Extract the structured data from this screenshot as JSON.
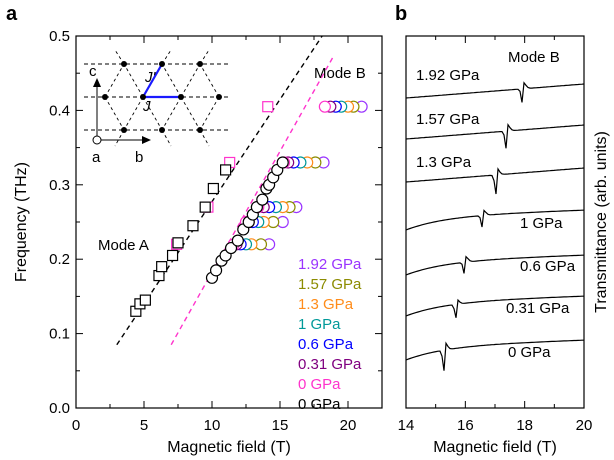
{
  "colors": {
    "pressures": [
      "#000000",
      "#ff33cc",
      "#800080",
      "#0000ff",
      "#009999",
      "#ff8c1a",
      "#8c8c00",
      "#9933ff"
    ],
    "fit_mode_a": "#000000",
    "fit_mode_b": "#ff33cc",
    "lattice_bond": "#1a1aff"
  },
  "panel_a": {
    "letter": "a",
    "xlabel": "Magnetic field (T)",
    "ylabel": "Frequency (THz)",
    "mode_a_label": "Mode A",
    "mode_b_label": "Mode B",
    "legend": [
      "1.92 GPa",
      "1.57 GPa",
      "1.3 GPa",
      "1 GPa",
      "0.6 GPa",
      "0.31 GPa",
      "0 GPa",
      "0 GPa"
    ],
    "legend_colors": [
      "#9933ff",
      "#8c8c00",
      "#ff8c1a",
      "#009999",
      "#0000ff",
      "#800080",
      "#ff33cc",
      "#000000"
    ],
    "inset": {
      "axis_c": "c",
      "axis_a": "a",
      "axis_b": "b",
      "bond_j": "J",
      "bond_jprime": "J'"
    }
  },
  "panel_b": {
    "letter": "b",
    "xlabel": "Magnetic field (T)",
    "ylabel": "Transmittance (arb. units)",
    "mode_label": "Mode B",
    "traces": [
      {
        "label": "1.92 GPa",
        "resonance": 17.95,
        "depth": 18
      },
      {
        "label": "1.57 GPa",
        "resonance": 17.4,
        "depth": 20
      },
      {
        "label": "1.3 GPa",
        "resonance": 17.05,
        "depth": 20
      },
      {
        "label": "1 GPa",
        "resonance": 16.6,
        "depth": 15
      },
      {
        "label": "0.6 GPa",
        "resonance": 16.0,
        "depth": 16
      },
      {
        "label": "0.31 GPa",
        "resonance": 15.7,
        "depth": 14
      },
      {
        "label": "0 GPa",
        "resonance": 15.3,
        "depth": 22
      }
    ]
  },
  "chart_data": [
    {
      "type": "scatter",
      "xlabel": "Magnetic field (T)",
      "ylabel": "Frequency (THz)",
      "xlim": [
        0,
        22.5
      ],
      "ylim": [
        0,
        0.5
      ],
      "xticks": [
        0,
        5,
        10,
        15,
        20
      ],
      "yticks": [
        0.0,
        0.1,
        0.2,
        0.3,
        0.4,
        0.5
      ],
      "grid": false,
      "fit_lines": [
        {
          "name": "Mode A",
          "points": [
            [
              3.0,
              0.085
            ],
            [
              18.1,
              0.5
            ]
          ]
        },
        {
          "name": "Mode B",
          "points": [
            [
              7.0,
              0.085
            ],
            [
              19.0,
              0.475
            ]
          ]
        }
      ],
      "series": [
        {
          "name": "0 GPa",
          "marker": "square",
          "color": "#000000",
          "points": [
            [
              4.4,
              0.13
            ],
            [
              4.7,
              0.14
            ],
            [
              5.1,
              0.145
            ],
            [
              6.1,
              0.178
            ],
            [
              6.3,
              0.19
            ],
            [
              7.1,
              0.205
            ],
            [
              7.5,
              0.222
            ],
            [
              8.6,
              0.245
            ],
            [
              9.5,
              0.27
            ],
            [
              10.1,
              0.295
            ],
            [
              11.0,
              0.32
            ]
          ]
        },
        {
          "name": "0 GPa",
          "marker": "square",
          "color": "#ff33cc",
          "points": [
            [
              7.4,
              0.22
            ],
            [
              9.7,
              0.27
            ],
            [
              11.3,
              0.33
            ],
            [
              14.1,
              0.405
            ]
          ]
        },
        {
          "name": "0 GPa",
          "marker": "circle",
          "color": "#000000",
          "points": [
            [
              10.0,
              0.175
            ],
            [
              10.3,
              0.185
            ],
            [
              10.7,
              0.198
            ],
            [
              11.0,
              0.205
            ],
            [
              11.4,
              0.215
            ],
            [
              11.9,
              0.225
            ],
            [
              12.3,
              0.24
            ],
            [
              12.7,
              0.25
            ],
            [
              13.0,
              0.26
            ],
            [
              13.3,
              0.27
            ],
            [
              13.7,
              0.28
            ],
            [
              14.0,
              0.295
            ],
            [
              14.2,
              0.3
            ],
            [
              14.5,
              0.31
            ],
            [
              14.8,
              0.32
            ],
            [
              15.2,
              0.33
            ]
          ]
        },
        {
          "name": "0 GPa",
          "marker": "circle",
          "color": "#ff33cc",
          "points": [
            [
              11.6,
              0.22
            ],
            [
              12.5,
              0.25
            ],
            [
              13.4,
              0.27
            ],
            [
              15.3,
              0.33
            ],
            [
              18.3,
              0.405
            ]
          ]
        },
        {
          "name": "0.31 GPa",
          "marker": "circle",
          "color": "#800080",
          "points": [
            [
              11.8,
              0.22
            ],
            [
              12.7,
              0.25
            ],
            [
              13.8,
              0.27
            ],
            [
              15.6,
              0.33
            ],
            [
              18.7,
              0.405
            ]
          ]
        },
        {
          "name": "0.6 GPa",
          "marker": "circle",
          "color": "#0000ff",
          "points": [
            [
              12.1,
              0.22
            ],
            [
              13.0,
              0.25
            ],
            [
              14.2,
              0.27
            ],
            [
              16.0,
              0.33
            ],
            [
              19.1,
              0.405
            ]
          ]
        },
        {
          "name": "1 GPa",
          "marker": "circle",
          "color": "#009999",
          "points": [
            [
              12.5,
              0.22
            ],
            [
              13.4,
              0.25
            ],
            [
              14.7,
              0.27
            ],
            [
              16.5,
              0.33
            ],
            [
              19.5,
              0.405
            ]
          ]
        },
        {
          "name": "1.3 GPa",
          "marker": "circle",
          "color": "#ff8c1a",
          "points": [
            [
              12.9,
              0.22
            ],
            [
              13.8,
              0.25
            ],
            [
              15.2,
              0.27
            ],
            [
              17.0,
              0.33
            ],
            [
              20.0,
              0.405
            ]
          ]
        },
        {
          "name": "1.57 GPa",
          "marker": "circle",
          "color": "#8c8c00",
          "points": [
            [
              13.6,
              0.22
            ],
            [
              14.5,
              0.25
            ],
            [
              15.7,
              0.27
            ],
            [
              17.6,
              0.33
            ],
            [
              20.4,
              0.405
            ]
          ]
        },
        {
          "name": "1.92 GPa",
          "marker": "circle",
          "color": "#9933ff",
          "points": [
            [
              14.2,
              0.22
            ],
            [
              15.2,
              0.25
            ],
            [
              16.2,
              0.27
            ],
            [
              18.2,
              0.33
            ],
            [
              21.0,
              0.405
            ]
          ]
        }
      ]
    },
    {
      "type": "line",
      "xlabel": "Magnetic field (T)",
      "ylabel": "Transmittance (arb. units)",
      "xlim": [
        14,
        20
      ],
      "xticks": [
        14,
        16,
        18,
        20
      ],
      "series": [
        {
          "name": "1.92 GPa",
          "resonance_field": 17.95
        },
        {
          "name": "1.57 GPa",
          "resonance_field": 17.4
        },
        {
          "name": "1.3 GPa",
          "resonance_field": 17.05
        },
        {
          "name": "1 GPa",
          "resonance_field": 16.6
        },
        {
          "name": "0.6 GPa",
          "resonance_field": 16.0
        },
        {
          "name": "0.31 GPa",
          "resonance_field": 15.7
        },
        {
          "name": "0 GPa",
          "resonance_field": 15.3
        }
      ]
    }
  ]
}
